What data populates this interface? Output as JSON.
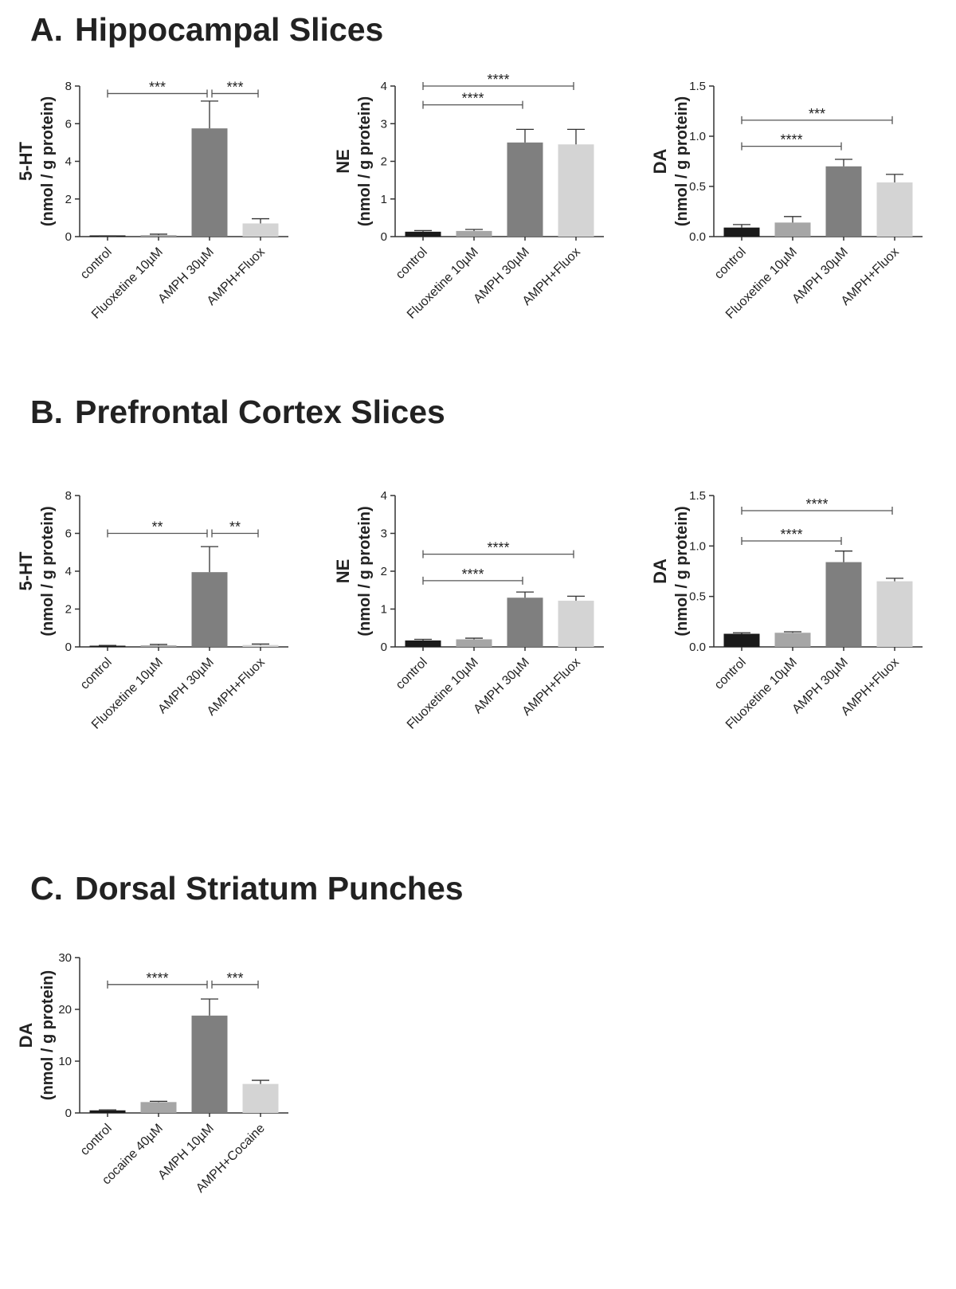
{
  "sections": [
    {
      "label": "A.",
      "title": "Hippocampal Slices"
    },
    {
      "label": "B.",
      "title": "Prefrontal Cortex Slices"
    },
    {
      "label": "C.",
      "title": "Dorsal Striatum Punches"
    }
  ],
  "chart_data": [
    {
      "type": "bar",
      "section": "A",
      "ylabel": "5-HT",
      "ylabel2": "(nmol / g protein)",
      "ylim": [
        0,
        8
      ],
      "yticks": [
        "0",
        "2",
        "4",
        "6",
        "8"
      ],
      "categories": [
        "control",
        "Fluoxetine 10µM",
        "AMPH 30µM",
        "AMPH+Fluox"
      ],
      "values": [
        0.02,
        0.08,
        5.75,
        0.7
      ],
      "errors": [
        0.02,
        0.05,
        1.45,
        0.25
      ],
      "colors": [
        "#1a1a1a",
        "#a6a6a6",
        "#7f7f7f",
        "#d4d4d4"
      ],
      "significance": [
        {
          "from": 0,
          "to": 2,
          "y": 7.6,
          "label": "***"
        },
        {
          "from": 2,
          "to": 3,
          "y": 7.6,
          "label": "***"
        }
      ]
    },
    {
      "type": "bar",
      "section": "A",
      "ylabel": "NE",
      "ylabel2": "(nmol / g protein)",
      "ylim": [
        0,
        4
      ],
      "yticks": [
        "0",
        "1",
        "2",
        "3",
        "4"
      ],
      "categories": [
        "control",
        "Fluoxetine 10µM",
        "AMPH 30µM",
        "AMPH+Fluox"
      ],
      "values": [
        0.13,
        0.15,
        2.5,
        2.45
      ],
      "errors": [
        0.03,
        0.04,
        0.35,
        0.4
      ],
      "colors": [
        "#1a1a1a",
        "#a6a6a6",
        "#7f7f7f",
        "#d4d4d4"
      ],
      "significance": [
        {
          "from": 0,
          "to": 2,
          "y": 3.5,
          "label": "****"
        },
        {
          "from": 0,
          "to": 3,
          "y": 4.0,
          "label": "****"
        }
      ]
    },
    {
      "type": "bar",
      "section": "A",
      "ylabel": "DA",
      "ylabel2": "(nmol / g protein)",
      "ylim": [
        0,
        1.5
      ],
      "yticks": [
        "0.0",
        "0.5",
        "1.0",
        "1.5"
      ],
      "categories": [
        "control",
        "Fluoxetine 10µM",
        "AMPH 30µM",
        "AMPH+Fluox"
      ],
      "values": [
        0.09,
        0.14,
        0.7,
        0.54
      ],
      "errors": [
        0.03,
        0.06,
        0.07,
        0.08
      ],
      "colors": [
        "#1a1a1a",
        "#a6a6a6",
        "#7f7f7f",
        "#d4d4d4"
      ],
      "significance": [
        {
          "from": 0,
          "to": 2,
          "y": 0.9,
          "label": "****"
        },
        {
          "from": 0,
          "to": 3,
          "y": 1.16,
          "label": "***"
        }
      ]
    },
    {
      "type": "bar",
      "section": "B",
      "ylabel": "5-HT",
      "ylabel2": "(nmol / g protein)",
      "ylim": [
        0,
        8
      ],
      "yticks": [
        "0",
        "2",
        "4",
        "6",
        "8"
      ],
      "categories": [
        "control",
        "Fluoxetine 10µM",
        "AMPH 30µM",
        "AMPH+Fluox"
      ],
      "values": [
        0.05,
        0.08,
        3.95,
        0.1
      ],
      "errors": [
        0.03,
        0.05,
        1.35,
        0.05
      ],
      "colors": [
        "#1a1a1a",
        "#a6a6a6",
        "#7f7f7f",
        "#d4d4d4"
      ],
      "significance": [
        {
          "from": 0,
          "to": 2,
          "y": 6.0,
          "label": "**"
        },
        {
          "from": 2,
          "to": 3,
          "y": 6.0,
          "label": "**"
        }
      ]
    },
    {
      "type": "bar",
      "section": "B",
      "ylabel": "NE",
      "ylabel2": "(nmol / g protein)",
      "ylim": [
        0,
        4
      ],
      "yticks": [
        "0",
        "1",
        "2",
        "3",
        "4"
      ],
      "categories": [
        "control",
        "Fluoxetine 10µM",
        "AMPH 30µM",
        "AMPH+Fluox"
      ],
      "values": [
        0.17,
        0.2,
        1.3,
        1.22
      ],
      "errors": [
        0.03,
        0.03,
        0.15,
        0.12
      ],
      "colors": [
        "#1a1a1a",
        "#a6a6a6",
        "#7f7f7f",
        "#d4d4d4"
      ],
      "significance": [
        {
          "from": 0,
          "to": 2,
          "y": 1.75,
          "label": "****"
        },
        {
          "from": 0,
          "to": 3,
          "y": 2.45,
          "label": "****"
        }
      ]
    },
    {
      "type": "bar",
      "section": "B",
      "ylabel": "DA",
      "ylabel2": "(nmol / g protein)",
      "ylim": [
        0,
        1.5
      ],
      "yticks": [
        "0.0",
        "0.5",
        "1.0",
        "1.5"
      ],
      "categories": [
        "control",
        "Fluoxetine 10µM",
        "AMPH 30µM",
        "AMPH+Fluox"
      ],
      "values": [
        0.13,
        0.14,
        0.84,
        0.65
      ],
      "errors": [
        0.01,
        0.01,
        0.11,
        0.03
      ],
      "colors": [
        "#1a1a1a",
        "#a6a6a6",
        "#7f7f7f",
        "#d4d4d4"
      ],
      "significance": [
        {
          "from": 0,
          "to": 2,
          "y": 1.05,
          "label": "****"
        },
        {
          "from": 0,
          "to": 3,
          "y": 1.35,
          "label": "****"
        }
      ]
    },
    {
      "type": "bar",
      "section": "C",
      "ylabel": "DA",
      "ylabel2": "(nmol / g protein)",
      "ylim": [
        0,
        30
      ],
      "yticks": [
        "0",
        "10",
        "20",
        "30"
      ],
      "categories": [
        "control",
        "cocaine 40µM",
        "AMPH 10µM",
        "AMPH+Cocaine"
      ],
      "values": [
        0.5,
        2.1,
        18.8,
        5.6
      ],
      "errors": [
        0.1,
        0.15,
        3.2,
        0.7
      ],
      "colors": [
        "#1a1a1a",
        "#a6a6a6",
        "#7f7f7f",
        "#d4d4d4"
      ],
      "significance": [
        {
          "from": 0,
          "to": 2,
          "y": 24.8,
          "label": "****"
        },
        {
          "from": 2,
          "to": 3,
          "y": 24.8,
          "label": "***"
        }
      ]
    }
  ]
}
